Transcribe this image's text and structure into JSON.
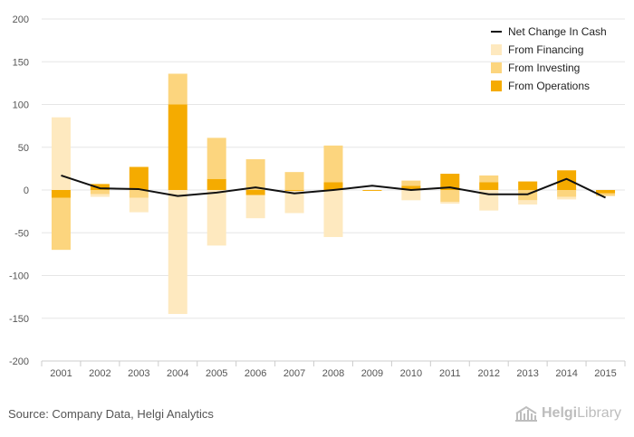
{
  "chart_data": {
    "type": "bar",
    "subtype": "stacked-bar-with-line",
    "categories": [
      "2001",
      "2002",
      "2003",
      "2004",
      "2005",
      "2006",
      "2007",
      "2008",
      "2009",
      "2010",
      "2011",
      "2012",
      "2013",
      "2014",
      "2015"
    ],
    "series": [
      {
        "name": "From Operations",
        "kind": "bar",
        "color": "#f5ab00",
        "values": [
          -9,
          7,
          27,
          100,
          13,
          -6,
          -1,
          9,
          -1,
          5,
          19,
          9,
          10,
          23,
          -4
        ]
      },
      {
        "name": "From Investing",
        "kind": "bar",
        "color": "#fcd57e",
        "values": [
          -61,
          -5,
          -9,
          36,
          48,
          36,
          21,
          43,
          0,
          6,
          -14,
          8,
          -12,
          -8,
          -3
        ]
      },
      {
        "name": "From Financing",
        "kind": "bar",
        "color": "#fee9bf",
        "values": [
          85,
          -3,
          -17,
          -145,
          -65,
          -27,
          -26,
          -55,
          0,
          -12,
          -2,
          -24,
          -5,
          -3,
          0
        ]
      },
      {
        "name": "Net Change In Cash",
        "kind": "line",
        "color": "#111111",
        "values": [
          17,
          2,
          1,
          -7,
          -3,
          3,
          -4,
          0,
          5,
          0,
          3,
          -5,
          -5,
          13,
          -9
        ]
      }
    ],
    "ylim": [
      -200,
      200
    ],
    "yticks": [
      -200,
      -150,
      -100,
      -50,
      0,
      50,
      100,
      150,
      200
    ],
    "grid": true,
    "legend_position": "top-right",
    "legend_order": [
      "Net Change In Cash",
      "From Financing",
      "From Investing",
      "From Operations"
    ],
    "xlabel": "",
    "ylabel": ""
  },
  "footer": {
    "source": "Source: Company Data, Helgi Analytics",
    "logo_part1": "Helgi",
    "logo_part2": "Library"
  }
}
